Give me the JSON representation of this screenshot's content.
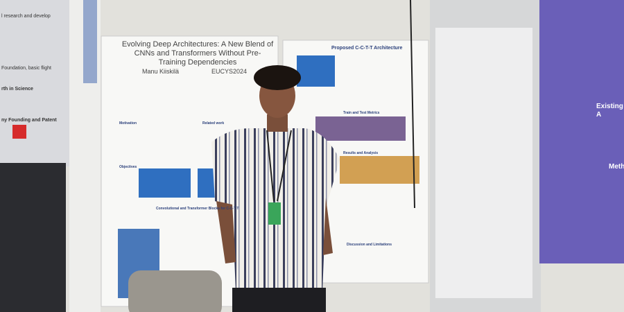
{
  "scene": {
    "left_poster": [
      "l research and develop",
      "Foundation, basic flight",
      "rth in Science",
      "ny Founding and Patent"
    ],
    "main_poster": {
      "title": "Evolving Deep Architectures: A New Blend of CNNs and Transformers Without Pre-Training Dependencies",
      "author": "Manu Kiiskilä",
      "event": "EUCYS2024",
      "sections": [
        "Motivation",
        "Related work",
        "Objectives",
        "Convolutional and Transformer Blocks for C-C-T-T"
      ]
    },
    "second_poster": {
      "title": "Proposed C-C-T-T Architecture",
      "sections": [
        "Train and Test Metrics",
        "Results and Analysis",
        "Discussion and Limitations"
      ]
    },
    "right_poster": {
      "headings": [
        "Existing A",
        "Meth"
      ]
    }
  }
}
